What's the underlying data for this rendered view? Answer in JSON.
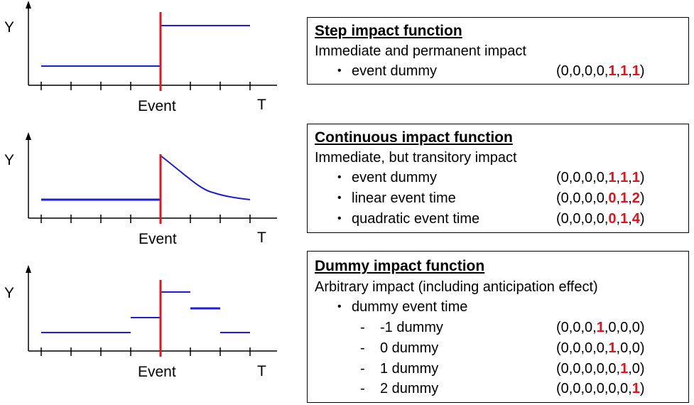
{
  "colors": {
    "signal": "#1f1fd0",
    "event_line": "#e0141e",
    "axis": "#000000",
    "highlight": "#e0141e"
  },
  "panels": [
    {
      "y_label": "Y",
      "x_event_label": "Event",
      "x_end_label": "T",
      "box": {
        "title": "Step impact function",
        "subtitle": "Immediate and permanent impact",
        "rows": [
          {
            "marker": "•",
            "label": "event dummy",
            "code": [
              [
                "(0,0,0,0,",
                false
              ],
              [
                "1",
                true
              ],
              [
                ",",
                false
              ],
              [
                "1",
                true
              ],
              [
                ",",
                false
              ],
              [
                "1",
                true
              ],
              [
                ")",
                false
              ]
            ]
          }
        ]
      }
    },
    {
      "y_label": "Y",
      "x_event_label": "Event",
      "x_end_label": "T",
      "box": {
        "title": "Continuous impact function",
        "subtitle": "Immediate, but transitory impact",
        "rows": [
          {
            "marker": "•",
            "label": "event dummy",
            "code": [
              [
                "(0,0,0,0,",
                false
              ],
              [
                "1",
                true
              ],
              [
                ",",
                false
              ],
              [
                "1",
                true
              ],
              [
                ",",
                false
              ],
              [
                "1",
                true
              ],
              [
                ")",
                false
              ]
            ]
          },
          {
            "marker": "•",
            "label": "linear event time",
            "code": [
              [
                "(0,0,0,0,",
                false
              ],
              [
                "0",
                true
              ],
              [
                ",",
                false
              ],
              [
                "1",
                true
              ],
              [
                ",",
                false
              ],
              [
                "2",
                true
              ],
              [
                ")",
                false
              ]
            ]
          },
          {
            "marker": "•",
            "label": "quadratic event time",
            "code": [
              [
                "(0,0,0,0,",
                false
              ],
              [
                "0",
                true
              ],
              [
                ",",
                false
              ],
              [
                "1",
                true
              ],
              [
                ",",
                false
              ],
              [
                "4",
                true
              ],
              [
                ")",
                false
              ]
            ]
          }
        ]
      }
    },
    {
      "y_label": "Y",
      "x_event_label": "Event",
      "x_end_label": "T",
      "box": {
        "title": "Dummy impact function",
        "subtitle": "Arbitrary impact (including anticipation effect)",
        "rows": [
          {
            "marker": "•",
            "label": "dummy event time",
            "code": []
          },
          {
            "marker": "-",
            "label": "-1 dummy",
            "code": [
              [
                "(0,0,0,",
                false
              ],
              [
                "1",
                true
              ],
              [
                ",0,0,0)",
                false
              ]
            ]
          },
          {
            "marker": "-",
            "label": "0 dummy",
            "code": [
              [
                "(0,0,0,0,",
                false
              ],
              [
                "1",
                true
              ],
              [
                ",0,0)",
                false
              ]
            ]
          },
          {
            "marker": "-",
            "label": "1 dummy",
            "code": [
              [
                "(0,0,0,0,0,",
                false
              ],
              [
                "1",
                true
              ],
              [
                ",0)",
                false
              ]
            ]
          },
          {
            "marker": "-",
            "label": "2 dummy",
            "code": [
              [
                "(0,0,0,0,0,0,",
                false
              ],
              [
                "1",
                true
              ],
              [
                ")",
                false
              ]
            ]
          }
        ]
      }
    }
  ]
}
